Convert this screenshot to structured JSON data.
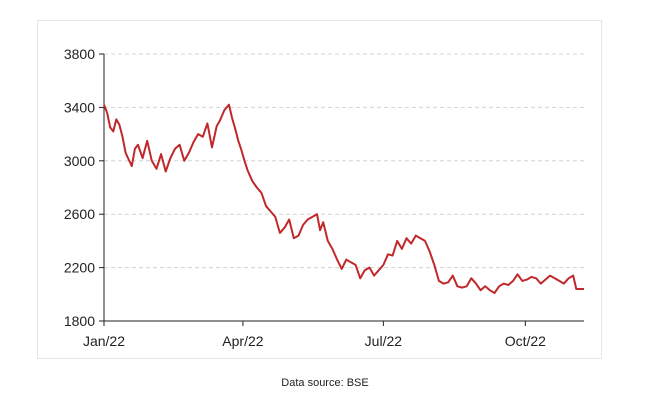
{
  "source_note": "Data source: BSE",
  "chart_data": {
    "type": "line",
    "title": "",
    "xlabel": "",
    "ylabel": "",
    "ylim": [
      1800,
      3800
    ],
    "y_ticks": [
      1800,
      2200,
      2600,
      3000,
      3400,
      3800
    ],
    "y_tick_labels": [
      "1800",
      "2200",
      "2600",
      "3000",
      "3400",
      "3800"
    ],
    "x_ticks": [
      "2022-01-01",
      "2022-04-01",
      "2022-07-01",
      "2022-10-01"
    ],
    "x_tick_labels": [
      "Jan/22",
      "Apr/22",
      "Jul/22",
      "Oct/22"
    ],
    "xlim": [
      "2022-01-01",
      "2022-11-08"
    ],
    "grid": "horizontal dashed",
    "line_color": "#c0282a",
    "series": [
      {
        "name": "",
        "x": [
          "2022-01-01",
          "2022-01-03",
          "2022-01-05",
          "2022-01-07",
          "2022-01-09",
          "2022-01-11",
          "2022-01-13",
          "2022-01-15",
          "2022-01-17",
          "2022-01-19",
          "2022-01-21",
          "2022-01-23",
          "2022-01-26",
          "2022-01-29",
          "2022-02-01",
          "2022-02-04",
          "2022-02-07",
          "2022-02-10",
          "2022-02-13",
          "2022-02-16",
          "2022-02-19",
          "2022-02-22",
          "2022-02-25",
          "2022-02-28",
          "2022-03-03",
          "2022-03-06",
          "2022-03-09",
          "2022-03-12",
          "2022-03-15",
          "2022-03-17",
          "2022-03-20",
          "2022-03-23",
          "2022-03-25",
          "2022-03-27",
          "2022-03-29",
          "2022-03-31",
          "2022-04-02",
          "2022-04-04",
          "2022-04-07",
          "2022-04-10",
          "2022-04-13",
          "2022-04-16",
          "2022-04-19",
          "2022-04-22",
          "2022-04-25",
          "2022-04-28",
          "2022-05-01",
          "2022-05-04",
          "2022-05-07",
          "2022-05-10",
          "2022-05-13",
          "2022-05-16",
          "2022-05-19",
          "2022-05-21",
          "2022-05-23",
          "2022-05-26",
          "2022-05-29",
          "2022-06-01",
          "2022-06-04",
          "2022-06-07",
          "2022-06-10",
          "2022-06-13",
          "2022-06-16",
          "2022-06-19",
          "2022-06-22",
          "2022-06-25",
          "2022-06-28",
          "2022-07-01",
          "2022-07-04",
          "2022-07-07",
          "2022-07-10",
          "2022-07-13",
          "2022-07-16",
          "2022-07-19",
          "2022-07-22",
          "2022-07-25",
          "2022-07-28",
          "2022-07-31",
          "2022-08-03",
          "2022-08-06",
          "2022-08-09",
          "2022-08-12",
          "2022-08-15",
          "2022-08-18",
          "2022-08-21",
          "2022-08-24",
          "2022-08-27",
          "2022-08-30",
          "2022-09-02",
          "2022-09-05",
          "2022-09-08",
          "2022-09-11",
          "2022-09-14",
          "2022-09-17",
          "2022-09-20",
          "2022-09-23",
          "2022-09-26",
          "2022-09-29",
          "2022-10-02",
          "2022-10-05",
          "2022-10-08",
          "2022-10-11",
          "2022-10-14",
          "2022-10-17",
          "2022-10-20",
          "2022-10-23",
          "2022-10-26",
          "2022-10-29",
          "2022-11-01",
          "2022-11-03",
          "2022-11-06",
          "2022-11-08"
        ],
        "y": [
          3420,
          3360,
          3250,
          3220,
          3310,
          3270,
          3180,
          3060,
          3010,
          2960,
          3090,
          3120,
          3020,
          3150,
          3000,
          2940,
          3050,
          2920,
          3020,
          3090,
          3120,
          3000,
          3060,
          3140,
          3200,
          3180,
          3280,
          3100,
          3260,
          3300,
          3380,
          3420,
          3320,
          3240,
          3150,
          3080,
          3000,
          2930,
          2850,
          2800,
          2760,
          2660,
          2620,
          2580,
          2460,
          2500,
          2560,
          2420,
          2440,
          2520,
          2560,
          2580,
          2600,
          2480,
          2540,
          2400,
          2340,
          2260,
          2190,
          2260,
          2240,
          2220,
          2120,
          2180,
          2200,
          2140,
          2180,
          2220,
          2300,
          2290,
          2400,
          2340,
          2420,
          2380,
          2440,
          2420,
          2400,
          2320,
          2220,
          2100,
          2080,
          2090,
          2140,
          2060,
          2050,
          2060,
          2120,
          2080,
          2030,
          2060,
          2030,
          2010,
          2060,
          2080,
          2070,
          2100,
          2150,
          2100,
          2110,
          2130,
          2120,
          2080,
          2110,
          2140,
          2120,
          2100,
          2080,
          2120,
          2140,
          2040,
          2040,
          2040
        ]
      }
    ]
  }
}
